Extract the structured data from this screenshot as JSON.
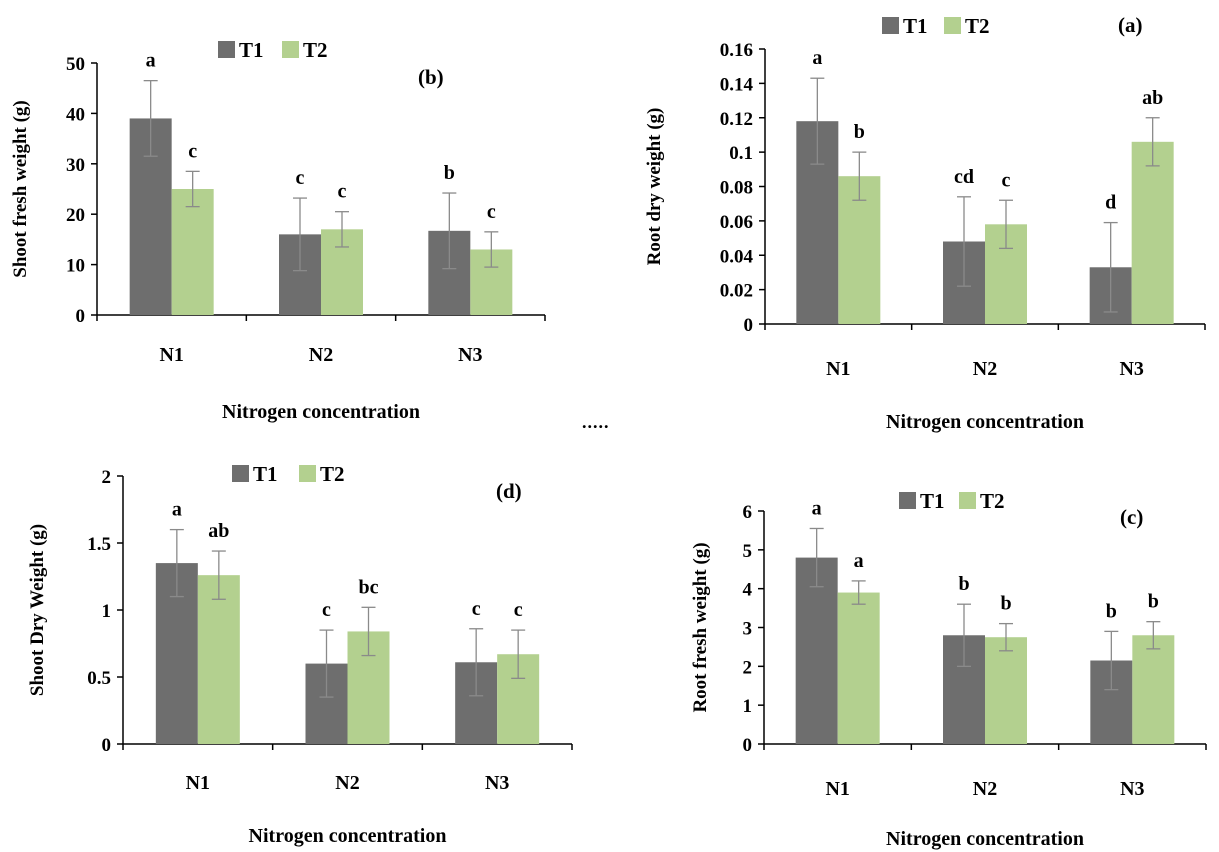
{
  "separator": ".....",
  "colors": {
    "T1": "#6e6e6e",
    "T2": "#b3d08f",
    "axis": "#000000",
    "error_bar": "#8a8a8a"
  },
  "chart_data": [
    {
      "id": "b",
      "type": "bar",
      "panel_label": "(b)",
      "ylabel": "Shoot fresh weight (g)",
      "xlabel": "Nitrogen concentration",
      "categories": [
        "N1",
        "N2",
        "N3"
      ],
      "ylim": [
        0,
        50
      ],
      "yticks": [
        "0",
        "10",
        "20",
        "30",
        "40",
        "50"
      ],
      "legend": "top",
      "series": [
        {
          "name": "T1",
          "values": [
            39,
            16,
            16.7
          ],
          "errors": [
            7.5,
            7.2,
            7.5
          ],
          "letters": [
            "a",
            "c",
            "b"
          ]
        },
        {
          "name": "T2",
          "values": [
            25,
            17,
            13
          ],
          "errors": [
            3.5,
            3.5,
            3.5
          ],
          "letters": [
            "c",
            "c",
            "c"
          ]
        }
      ]
    },
    {
      "id": "a",
      "type": "bar",
      "panel_label": "(a)",
      "ylabel": "Root dry weight (g)",
      "xlabel": "Nitrogen concentration",
      "categories": [
        "N1",
        "N2",
        "N3"
      ],
      "ylim": [
        0,
        0.16
      ],
      "yticks": [
        "0",
        "0.02",
        "0.04",
        "0.06",
        "0.08",
        "0.1",
        "0.12",
        "0.14",
        "0.16"
      ],
      "legend": "top",
      "series": [
        {
          "name": "T1",
          "values": [
            0.118,
            0.048,
            0.033
          ],
          "errors": [
            0.025,
            0.026,
            0.026
          ],
          "letters": [
            "a",
            "cd",
            "d"
          ]
        },
        {
          "name": "T2",
          "values": [
            0.086,
            0.058,
            0.106
          ],
          "errors": [
            0.014,
            0.014,
            0.014
          ],
          "letters": [
            "b",
            "c",
            "ab"
          ]
        }
      ]
    },
    {
      "id": "d",
      "type": "bar",
      "panel_label": "(d)",
      "ylabel": "Shoot Dry Weight (g)",
      "xlabel": "Nitrogen concentration",
      "categories": [
        "N1",
        "N2",
        "N3"
      ],
      "ylim": [
        0,
        2
      ],
      "yticks": [
        "0",
        "0.5",
        "1",
        "1.5",
        "2"
      ],
      "legend": "top",
      "series": [
        {
          "name": "T1",
          "values": [
            1.35,
            0.6,
            0.61
          ],
          "errors": [
            0.25,
            0.25,
            0.25
          ],
          "letters": [
            "a",
            "c",
            "c"
          ]
        },
        {
          "name": "T2",
          "values": [
            1.26,
            0.84,
            0.67
          ],
          "errors": [
            0.18,
            0.18,
            0.18
          ],
          "letters": [
            "ab",
            "bc",
            "c"
          ]
        }
      ]
    },
    {
      "id": "c",
      "type": "bar",
      "panel_label": "(c)",
      "ylabel": "Root  fresh  weight (g)",
      "xlabel": "Nitrogen concentration",
      "categories": [
        "N1",
        "N2",
        "N3"
      ],
      "ylim": [
        0,
        6
      ],
      "yticks": [
        "0",
        "1",
        "2",
        "3",
        "4",
        "5",
        "6"
      ],
      "legend": "top",
      "series": [
        {
          "name": "T1",
          "values": [
            4.8,
            2.8,
            2.15
          ],
          "errors": [
            0.75,
            0.8,
            0.75
          ],
          "letters": [
            "a",
            "b",
            "b"
          ]
        },
        {
          "name": "T2",
          "values": [
            3.9,
            2.75,
            2.8
          ],
          "errors": [
            0.3,
            0.35,
            0.35
          ],
          "letters": [
            "a",
            "b",
            "b"
          ]
        }
      ]
    }
  ]
}
